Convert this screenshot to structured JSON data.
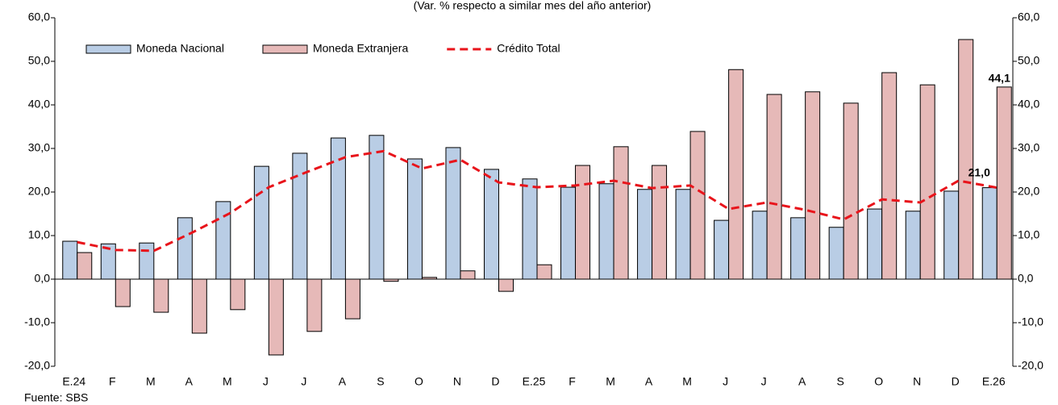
{
  "chart_data": {
    "type": "bar",
    "subtitle": "(Var. % respecto a similar mes del año anterior)",
    "source": "Fuente: SBS",
    "categories": [
      "E.24",
      "F",
      "M",
      "A",
      "M",
      "J",
      "J",
      "A",
      "S",
      "O",
      "N",
      "D",
      "E.25",
      "F",
      "M",
      "A",
      "M",
      "J",
      "J",
      "A",
      "S",
      "O",
      "N",
      "D",
      "E.26"
    ],
    "series": [
      {
        "name": "Moneda Nacional",
        "type": "bar",
        "color": "#b9cde5",
        "values": [
          8.7,
          8.1,
          8.3,
          14.1,
          17.8,
          25.9,
          28.9,
          32.4,
          33.0,
          27.6,
          30.2,
          25.2,
          23.0,
          21.1,
          21.9,
          20.6,
          20.6,
          13.5,
          15.6,
          14.1,
          11.9,
          16.1,
          15.6,
          20.2,
          21.0
        ]
      },
      {
        "name": "Moneda Extranjera",
        "type": "bar",
        "color": "#e6b9b8",
        "values": [
          6.1,
          -6.3,
          -7.6,
          -12.4,
          -7.0,
          -17.4,
          -12.0,
          -9.1,
          -0.5,
          0.4,
          1.9,
          -2.8,
          3.3,
          26.1,
          30.4,
          26.1,
          33.9,
          48.1,
          42.4,
          43.0,
          40.4,
          47.4,
          44.6,
          55.0,
          44.1
        ],
        "value_labels": [
          null,
          null,
          null,
          null,
          null,
          null,
          null,
          null,
          null,
          null,
          null,
          null,
          null,
          null,
          null,
          null,
          null,
          null,
          null,
          null,
          null,
          null,
          null,
          null,
          "44,1"
        ]
      },
      {
        "name": "Crédito Total",
        "type": "line",
        "color": "#e8141b",
        "values": [
          8.5,
          6.7,
          6.5,
          10.7,
          15.2,
          21.1,
          24.6,
          28.0,
          29.4,
          25.4,
          27.4,
          22.2,
          21.1,
          21.5,
          22.6,
          20.9,
          21.5,
          16.1,
          17.6,
          15.9,
          13.7,
          18.3,
          17.6,
          22.6,
          21.0
        ],
        "value_labels": [
          null,
          null,
          null,
          null,
          null,
          null,
          null,
          null,
          null,
          null,
          null,
          null,
          null,
          null,
          null,
          null,
          null,
          null,
          null,
          null,
          null,
          null,
          null,
          null,
          "21,0"
        ]
      }
    ],
    "ylim": [
      -20,
      60
    ],
    "yticks": [
      {
        "value": -20,
        "label": "-20,0"
      },
      {
        "value": -10,
        "label": "-10,0"
      },
      {
        "value": 0,
        "label": "0,0"
      },
      {
        "value": 10,
        "label": "10,0"
      },
      {
        "value": 20,
        "label": "20,0"
      },
      {
        "value": 30,
        "label": "30,0"
      },
      {
        "value": 40,
        "label": "40,0"
      },
      {
        "value": 50,
        "label": "50,0"
      },
      {
        "value": 60,
        "label": "60,0"
      }
    ],
    "y2lim": [
      -20,
      60
    ],
    "y2ticks": [
      {
        "value": -20,
        "label": "-20,0"
      },
      {
        "value": -10,
        "label": "-10,0"
      },
      {
        "value": 0,
        "label": "0,0"
      },
      {
        "value": 10,
        "label": "10,0"
      },
      {
        "value": 20,
        "label": "20,0"
      },
      {
        "value": 30,
        "label": "30,0"
      },
      {
        "value": 40,
        "label": "40,0"
      },
      {
        "value": 50,
        "label": "50,0"
      },
      {
        "value": 60,
        "label": "60,0"
      }
    ],
    "legend": "top-left",
    "grid": false
  }
}
